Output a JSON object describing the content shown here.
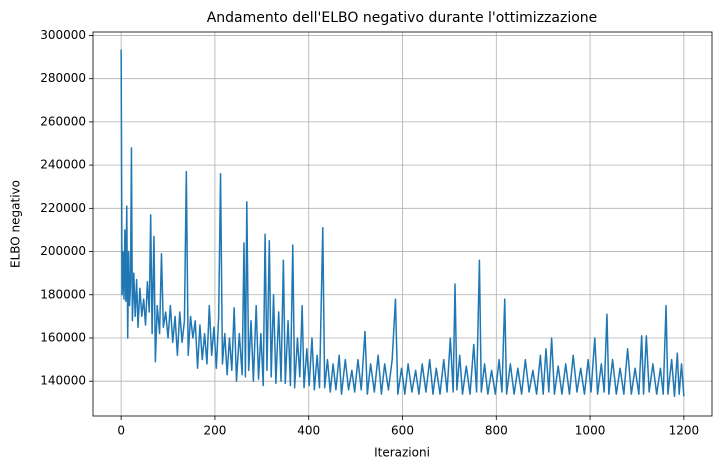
{
  "chart_data": {
    "type": "line",
    "title": "Andamento dell'ELBO negativo durante l'ottimizzazione",
    "xlabel": "Iterazioni",
    "ylabel": "ELBO negativo",
    "color": "#1f77b4",
    "grid": true,
    "xlim": [
      -60,
      1260
    ],
    "xticks": [
      0,
      200,
      400,
      600,
      800,
      1000,
      1200
    ],
    "ylim": [
      123900,
      301600
    ],
    "yticks": [
      140000,
      160000,
      180000,
      200000,
      220000,
      240000,
      260000,
      280000,
      300000
    ],
    "x": [
      0,
      2,
      4,
      6,
      8,
      10,
      12,
      14,
      16,
      18,
      20,
      22,
      24,
      27,
      30,
      33,
      36,
      40,
      44,
      48,
      52,
      56,
      60,
      63,
      66,
      70,
      73,
      77,
      82,
      86,
      90,
      95,
      100,
      105,
      110,
      115,
      120,
      125,
      130,
      135,
      139,
      143,
      148,
      153,
      158,
      163,
      168,
      173,
      178,
      183,
      188,
      193,
      198,
      203,
      208,
      212,
      216,
      221,
      226,
      231,
      236,
      241,
      246,
      252,
      258,
      262,
      265,
      268,
      272,
      277,
      282,
      288,
      293,
      298,
      303,
      307,
      311,
      316,
      320,
      325,
      330,
      336,
      341,
      346,
      350,
      356,
      361,
      366,
      370,
      376,
      381,
      386,
      390,
      396,
      401,
      407,
      412,
      418,
      423,
      430,
      434,
      440,
      446,
      452,
      458,
      465,
      470,
      478,
      485,
      492,
      498,
      505,
      512,
      520,
      525,
      532,
      540,
      548,
      555,
      562,
      570,
      578,
      585,
      590,
      598,
      605,
      612,
      620,
      628,
      635,
      642,
      650,
      658,
      665,
      672,
      680,
      688,
      695,
      702,
      708,
      712,
      716,
      722,
      728,
      736,
      744,
      752,
      758,
      764,
      768,
      775,
      782,
      790,
      798,
      806,
      812,
      818,
      822,
      830,
      838,
      846,
      854,
      862,
      870,
      878,
      886,
      894,
      900,
      906,
      912,
      918,
      924,
      932,
      940,
      948,
      956,
      964,
      972,
      980,
      988,
      996,
      1002,
      1010,
      1016,
      1024,
      1030,
      1036,
      1040,
      1048,
      1056,
      1064,
      1072,
      1080,
      1088,
      1096,
      1104,
      1110,
      1114,
      1120,
      1126,
      1134,
      1142,
      1150,
      1156,
      1162,
      1166,
      1174,
      1180,
      1186,
      1190,
      1195,
      1200
    ],
    "values": [
      293500,
      180000,
      200000,
      178000,
      210000,
      177000,
      221000,
      160000,
      200000,
      175000,
      185000,
      248000,
      168000,
      190000,
      170000,
      187000,
      165000,
      183000,
      170000,
      178000,
      166000,
      186000,
      172000,
      217000,
      162000,
      207000,
      149000,
      175000,
      162000,
      199000,
      165000,
      172000,
      160000,
      175000,
      158000,
      170000,
      152000,
      172000,
      158000,
      168000,
      237000,
      152000,
      170000,
      160000,
      168000,
      146000,
      166000,
      150000,
      162000,
      148000,
      175000,
      152000,
      165000,
      146000,
      170000,
      236000,
      148000,
      162000,
      143000,
      160000,
      145000,
      174000,
      140000,
      162000,
      143000,
      204000,
      142000,
      223000,
      145000,
      168000,
      140000,
      175000,
      141000,
      162000,
      138000,
      208000,
      145000,
      205000,
      142000,
      180000,
      139000,
      172000,
      140000,
      196000,
      139000,
      168000,
      138000,
      203000,
      137000,
      160000,
      142000,
      175000,
      137000,
      155000,
      138000,
      160000,
      136000,
      152000,
      137000,
      211000,
      137000,
      150000,
      135000,
      148000,
      136000,
      152000,
      134000,
      150000,
      136000,
      145000,
      135000,
      150000,
      136000,
      163000,
      134000,
      148000,
      135000,
      152000,
      134000,
      148000,
      136000,
      150000,
      178000,
      134000,
      146000,
      134000,
      148000,
      135000,
      145000,
      134000,
      148000,
      135000,
      150000,
      134000,
      146000,
      134000,
      150000,
      135000,
      160000,
      135000,
      185000,
      136000,
      152000,
      134000,
      147000,
      134000,
      157000,
      135000,
      196000,
      135000,
      148000,
      134000,
      145000,
      134000,
      150000,
      135000,
      178000,
      134000,
      148000,
      134000,
      146000,
      134000,
      150000,
      135000,
      145000,
      134000,
      152000,
      134000,
      155000,
      135000,
      160000,
      134000,
      147000,
      134000,
      148000,
      134000,
      152000,
      135000,
      146000,
      134000,
      150000,
      135000,
      160000,
      134000,
      148000,
      135000,
      171000,
      134000,
      150000,
      134000,
      146000,
      134000,
      155000,
      134000,
      146000,
      134000,
      161000,
      134000,
      161000,
      135000,
      148000,
      134000,
      146000,
      134000,
      175000,
      134000,
      150000,
      133000,
      153000,
      134000,
      148000,
      133000
    ]
  }
}
